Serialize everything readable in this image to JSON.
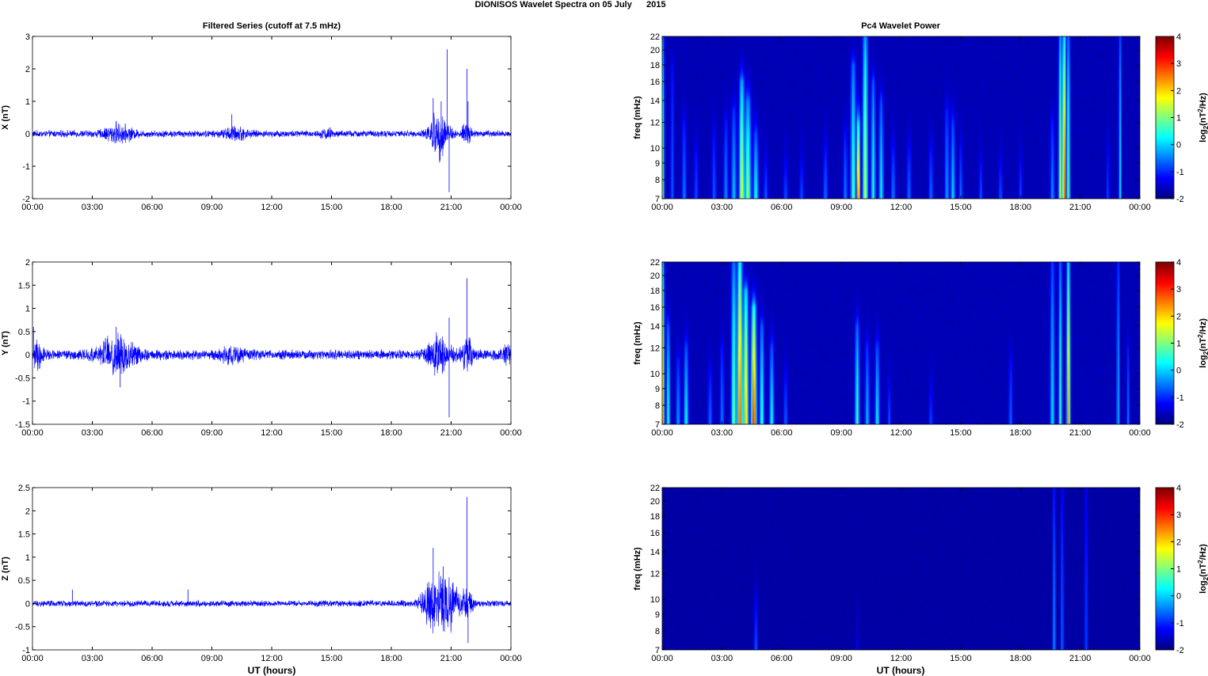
{
  "figure": {
    "title": "DIONISOS Wavelet Spectra on 05 July      2015",
    "left_title": "Filtered Series (cutoff at 7.5 mHz)",
    "right_title": "Pc4 Wavelet Power",
    "xlabel": "UT (hours)"
  },
  "chart_data": [
    {
      "type": "line",
      "ylabel": "X (nT)",
      "x_unit": "hours UT",
      "xlim": [
        0,
        24
      ],
      "ylim": [
        -2,
        3
      ],
      "yticks": [
        "3",
        "2",
        "1",
        "0",
        "-1",
        "-2"
      ],
      "ytick_values": [
        3,
        2,
        1,
        0,
        -1,
        -2
      ],
      "xticks": [
        "00:00",
        "03:00",
        "06:00",
        "09:00",
        "12:00",
        "15:00",
        "18:00",
        "21:00",
        "00:00"
      ],
      "line_color": "#0000ff",
      "noise_amplitude": 0.08,
      "activity": [
        {
          "center": 4.3,
          "width": 0.7,
          "amplitude": 0.18
        },
        {
          "center": 10.2,
          "width": 0.6,
          "amplitude": 0.12
        },
        {
          "center": 14.8,
          "width": 0.3,
          "amplitude": 0.08
        },
        {
          "center": 20.4,
          "width": 0.45,
          "amplitude": 0.55
        },
        {
          "center": 21.8,
          "width": 0.25,
          "amplitude": 0.25
        }
      ],
      "spikes": [
        {
          "x": 20.1,
          "y": 1.1
        },
        {
          "x": 20.5,
          "y": 1.0
        },
        {
          "x": 20.8,
          "y": 2.6
        },
        {
          "x": 20.9,
          "y": -1.8
        },
        {
          "x": 21.8,
          "y": 2.0
        },
        {
          "x": 21.85,
          "y": 1.0
        },
        {
          "x": 10.0,
          "y": 0.6
        },
        {
          "x": 4.2,
          "y": 0.4
        }
      ]
    },
    {
      "type": "line",
      "ylabel": "Y (nT)",
      "x_unit": "hours UT",
      "xlim": [
        0,
        24
      ],
      "ylim": [
        -1.5,
        2
      ],
      "yticks": [
        "2",
        "1.5",
        "1",
        "0.5",
        "0",
        "-0.5",
        "-1",
        "-1.5"
      ],
      "ytick_values": [
        2,
        1.5,
        1,
        0.5,
        0,
        -0.5,
        -1,
        -1.5
      ],
      "xticks": [
        "00:00",
        "03:00",
        "06:00",
        "09:00",
        "12:00",
        "15:00",
        "18:00",
        "21:00",
        "00:00"
      ],
      "line_color": "#0000ff",
      "noise_amplitude": 0.08,
      "activity": [
        {
          "center": 0.2,
          "width": 0.3,
          "amplitude": 0.2
        },
        {
          "center": 4.3,
          "width": 0.9,
          "amplitude": 0.3
        },
        {
          "center": 10.0,
          "width": 0.6,
          "amplitude": 0.1
        },
        {
          "center": 20.4,
          "width": 0.5,
          "amplitude": 0.35
        },
        {
          "center": 21.8,
          "width": 0.3,
          "amplitude": 0.25
        },
        {
          "center": 23.8,
          "width": 0.3,
          "amplitude": 0.12
        }
      ],
      "spikes": [
        {
          "x": 4.2,
          "y": 0.6
        },
        {
          "x": 4.4,
          "y": -0.7
        },
        {
          "x": 20.9,
          "y": 0.8
        },
        {
          "x": 20.9,
          "y": -1.35
        },
        {
          "x": 21.8,
          "y": 1.65
        },
        {
          "x": 0.05,
          "y": 0.6
        }
      ]
    },
    {
      "type": "line",
      "ylabel": "Z (nT)",
      "x_unit": "hours UT",
      "xlim": [
        0,
        24
      ],
      "ylim": [
        -1,
        2.5
      ],
      "yticks": [
        "2.5",
        "2",
        "1.5",
        "1",
        "0.5",
        "0",
        "-0.5",
        "-1"
      ],
      "ytick_values": [
        2.5,
        2,
        1.5,
        1,
        0.5,
        0,
        -0.5,
        -1
      ],
      "xticks": [
        "00:00",
        "03:00",
        "06:00",
        "09:00",
        "12:00",
        "15:00",
        "18:00",
        "21:00",
        "00:00"
      ],
      "line_color": "#0000ff",
      "noise_amplitude": 0.05,
      "activity": [
        {
          "center": 20.2,
          "width": 0.6,
          "amplitude": 0.5
        },
        {
          "center": 21.0,
          "width": 0.4,
          "amplitude": 0.35
        },
        {
          "center": 21.8,
          "width": 0.25,
          "amplitude": 0.3
        }
      ],
      "spikes": [
        {
          "x": 20.1,
          "y": 1.2
        },
        {
          "x": 20.6,
          "y": 0.8
        },
        {
          "x": 21.8,
          "y": 2.3
        },
        {
          "x": 21.85,
          "y": -0.85
        },
        {
          "x": 2.0,
          "y": 0.3
        },
        {
          "x": 7.8,
          "y": 0.3
        }
      ]
    },
    {
      "type": "heatmap",
      "ylabel": "freq (mHz)",
      "colorbar_label": "log2(nT^2/Hz)",
      "xlim": [
        0,
        24
      ],
      "ylim": [
        7,
        22
      ],
      "yscale": "log",
      "yticks": [
        "22",
        "20",
        "18",
        "16",
        "14",
        "12",
        "10",
        "9",
        "8",
        "7"
      ],
      "ytick_values": [
        22,
        20,
        18,
        16,
        14,
        12,
        10,
        9,
        8,
        7
      ],
      "xticks": [
        "00:00",
        "03:00",
        "06:00",
        "09:00",
        "12:00",
        "15:00",
        "18:00",
        "21:00",
        "00:00"
      ],
      "clim": [
        -2,
        4
      ],
      "colorbar_ticks": [
        "4",
        "3",
        "2",
        "1",
        "0",
        "-1",
        "-2"
      ],
      "colorbar_values": [
        4,
        3,
        2,
        1,
        0,
        -1,
        -2
      ],
      "background_level": -1.7,
      "bursts": [
        {
          "t": 0.05,
          "w": 0.06,
          "level": 1.0,
          "fmax": 22
        },
        {
          "t": 0.5,
          "w": 0.08,
          "level": -0.6,
          "fmax": 18
        },
        {
          "t": 1.1,
          "w": 0.1,
          "level": -0.4,
          "fmax": 12
        },
        {
          "t": 1.7,
          "w": 0.1,
          "level": -0.7,
          "fmax": 10
        },
        {
          "t": 2.6,
          "w": 0.1,
          "level": -0.6,
          "fmax": 11
        },
        {
          "t": 3.2,
          "w": 0.1,
          "level": -0.3,
          "fmax": 12
        },
        {
          "t": 3.6,
          "w": 0.12,
          "level": 0.0,
          "fmax": 13
        },
        {
          "t": 4.0,
          "w": 0.12,
          "level": 1.8,
          "fmax": 16
        },
        {
          "t": 4.3,
          "w": 0.15,
          "level": 1.2,
          "fmax": 14
        },
        {
          "t": 4.7,
          "w": 0.12,
          "level": 0.5,
          "fmax": 11
        },
        {
          "t": 5.2,
          "w": 0.1,
          "level": -0.6,
          "fmax": 9
        },
        {
          "t": 6.2,
          "w": 0.1,
          "level": -0.7,
          "fmax": 9
        },
        {
          "t": 7.0,
          "w": 0.1,
          "level": -0.7,
          "fmax": 9
        },
        {
          "t": 8.2,
          "w": 0.1,
          "level": -0.5,
          "fmax": 10
        },
        {
          "t": 9.2,
          "w": 0.1,
          "level": -0.4,
          "fmax": 11
        },
        {
          "t": 9.6,
          "w": 0.12,
          "level": 0.8,
          "fmax": 18
        },
        {
          "t": 9.85,
          "w": 0.08,
          "level": 3.4,
          "fmax": 12
        },
        {
          "t": 10.2,
          "w": 0.12,
          "level": 1.6,
          "fmax": 22
        },
        {
          "t": 10.6,
          "w": 0.1,
          "level": 0.6,
          "fmax": 16
        },
        {
          "t": 11.0,
          "w": 0.1,
          "level": 0.4,
          "fmax": 14
        },
        {
          "t": 11.6,
          "w": 0.1,
          "level": -0.4,
          "fmax": 10
        },
        {
          "t": 12.4,
          "w": 0.1,
          "level": -0.5,
          "fmax": 10
        },
        {
          "t": 13.5,
          "w": 0.1,
          "level": -0.5,
          "fmax": 10
        },
        {
          "t": 14.3,
          "w": 0.1,
          "level": -0.2,
          "fmax": 13
        },
        {
          "t": 14.6,
          "w": 0.1,
          "level": 0.2,
          "fmax": 12
        },
        {
          "t": 15.0,
          "w": 0.08,
          "level": -0.4,
          "fmax": 10
        },
        {
          "t": 16.0,
          "w": 0.08,
          "level": -0.6,
          "fmax": 9
        },
        {
          "t": 17.0,
          "w": 0.08,
          "level": -0.6,
          "fmax": 9
        },
        {
          "t": 18.0,
          "w": 0.08,
          "level": -0.7,
          "fmax": 9
        },
        {
          "t": 19.6,
          "w": 0.1,
          "level": -0.3,
          "fmax": 12
        },
        {
          "t": 20.0,
          "w": 0.08,
          "level": 1.6,
          "fmax": 22
        },
        {
          "t": 20.2,
          "w": 0.08,
          "level": 3.2,
          "fmax": 22
        },
        {
          "t": 20.4,
          "w": 0.08,
          "level": 1.0,
          "fmax": 22
        },
        {
          "t": 22.4,
          "w": 0.06,
          "level": -0.6,
          "fmax": 10
        },
        {
          "t": 23.0,
          "w": 0.06,
          "level": 0.4,
          "fmax": 22
        }
      ]
    },
    {
      "type": "heatmap",
      "ylabel": "freq (mHz)",
      "colorbar_label": "log2(nT^2/Hz)",
      "xlim": [
        0,
        24
      ],
      "ylim": [
        7,
        22
      ],
      "yscale": "log",
      "yticks": [
        "22",
        "20",
        "18",
        "16",
        "14",
        "12",
        "10",
        "9",
        "8",
        "7"
      ],
      "ytick_values": [
        22,
        20,
        18,
        16,
        14,
        12,
        10,
        9,
        8,
        7
      ],
      "xticks": [
        "00:00",
        "03:00",
        "06:00",
        "09:00",
        "12:00",
        "15:00",
        "18:00",
        "21:00",
        "00:00"
      ],
      "clim": [
        -2,
        4
      ],
      "colorbar_ticks": [
        "4",
        "3",
        "2",
        "1",
        "0",
        "-1",
        "-2"
      ],
      "colorbar_values": [
        4,
        3,
        2,
        1,
        0,
        -1,
        -2
      ],
      "background_level": -1.7,
      "bursts": [
        {
          "t": 0.05,
          "w": 0.06,
          "level": 2.2,
          "fmax": 22
        },
        {
          "t": 0.3,
          "w": 0.08,
          "level": 0.8,
          "fmax": 14
        },
        {
          "t": 0.8,
          "w": 0.1,
          "level": -0.2,
          "fmax": 11
        },
        {
          "t": 1.2,
          "w": 0.1,
          "level": 0.5,
          "fmax": 12
        },
        {
          "t": 2.4,
          "w": 0.1,
          "level": -0.5,
          "fmax": 10
        },
        {
          "t": 3.0,
          "w": 0.1,
          "level": -0.4,
          "fmax": 12
        },
        {
          "t": 3.6,
          "w": 0.12,
          "level": 1.0,
          "fmax": 22
        },
        {
          "t": 3.9,
          "w": 0.12,
          "level": 3.0,
          "fmax": 22
        },
        {
          "t": 4.2,
          "w": 0.12,
          "level": 2.4,
          "fmax": 18
        },
        {
          "t": 4.6,
          "w": 0.12,
          "level": 3.3,
          "fmax": 16
        },
        {
          "t": 5.0,
          "w": 0.1,
          "level": 0.8,
          "fmax": 14
        },
        {
          "t": 5.5,
          "w": 0.1,
          "level": 0.5,
          "fmax": 12
        },
        {
          "t": 6.2,
          "w": 0.08,
          "level": -0.5,
          "fmax": 10
        },
        {
          "t": 9.8,
          "w": 0.1,
          "level": 0.8,
          "fmax": 14
        },
        {
          "t": 10.3,
          "w": 0.1,
          "level": 0.0,
          "fmax": 12
        },
        {
          "t": 10.8,
          "w": 0.1,
          "level": 0.4,
          "fmax": 12
        },
        {
          "t": 11.4,
          "w": 0.08,
          "level": -0.6,
          "fmax": 9
        },
        {
          "t": 13.5,
          "w": 0.08,
          "level": -0.7,
          "fmax": 9
        },
        {
          "t": 17.5,
          "w": 0.08,
          "level": -0.5,
          "fmax": 11
        },
        {
          "t": 19.6,
          "w": 0.1,
          "level": 0.2,
          "fmax": 22
        },
        {
          "t": 20.0,
          "w": 0.08,
          "level": 0.8,
          "fmax": 22
        },
        {
          "t": 20.4,
          "w": 0.08,
          "level": 2.6,
          "fmax": 22
        },
        {
          "t": 22.9,
          "w": 0.06,
          "level": 0.2,
          "fmax": 22
        },
        {
          "t": 23.4,
          "w": 0.06,
          "level": -0.4,
          "fmax": 12
        }
      ]
    },
    {
      "type": "heatmap",
      "ylabel": "freq (mHz)",
      "colorbar_label": "log2(nT^2/Hz)",
      "xlim": [
        0,
        24
      ],
      "ylim": [
        7,
        22
      ],
      "yscale": "log",
      "yticks": [
        "22",
        "20",
        "18",
        "16",
        "14",
        "12",
        "10",
        "9",
        "8",
        "7"
      ],
      "ytick_values": [
        22,
        20,
        18,
        16,
        14,
        12,
        10,
        9,
        8,
        7
      ],
      "xticks": [
        "00:00",
        "03:00",
        "06:00",
        "09:00",
        "12:00",
        "15:00",
        "18:00",
        "21:00",
        "00:00"
      ],
      "clim": [
        -2,
        4
      ],
      "colorbar_ticks": [
        "4",
        "3",
        "2",
        "1",
        "0",
        "-1",
        "-2"
      ],
      "colorbar_values": [
        4,
        3,
        2,
        1,
        0,
        -1,
        -2
      ],
      "background_level": -1.8,
      "bursts": [
        {
          "t": 4.7,
          "w": 0.08,
          "level": -0.6,
          "fmax": 10
        },
        {
          "t": 9.8,
          "w": 0.06,
          "level": -1.2,
          "fmax": 9
        },
        {
          "t": 19.7,
          "w": 0.06,
          "level": 0.0,
          "fmax": 22
        },
        {
          "t": 20.1,
          "w": 0.06,
          "level": -0.3,
          "fmax": 22
        },
        {
          "t": 21.3,
          "w": 0.06,
          "level": -0.5,
          "fmax": 22
        }
      ]
    }
  ]
}
